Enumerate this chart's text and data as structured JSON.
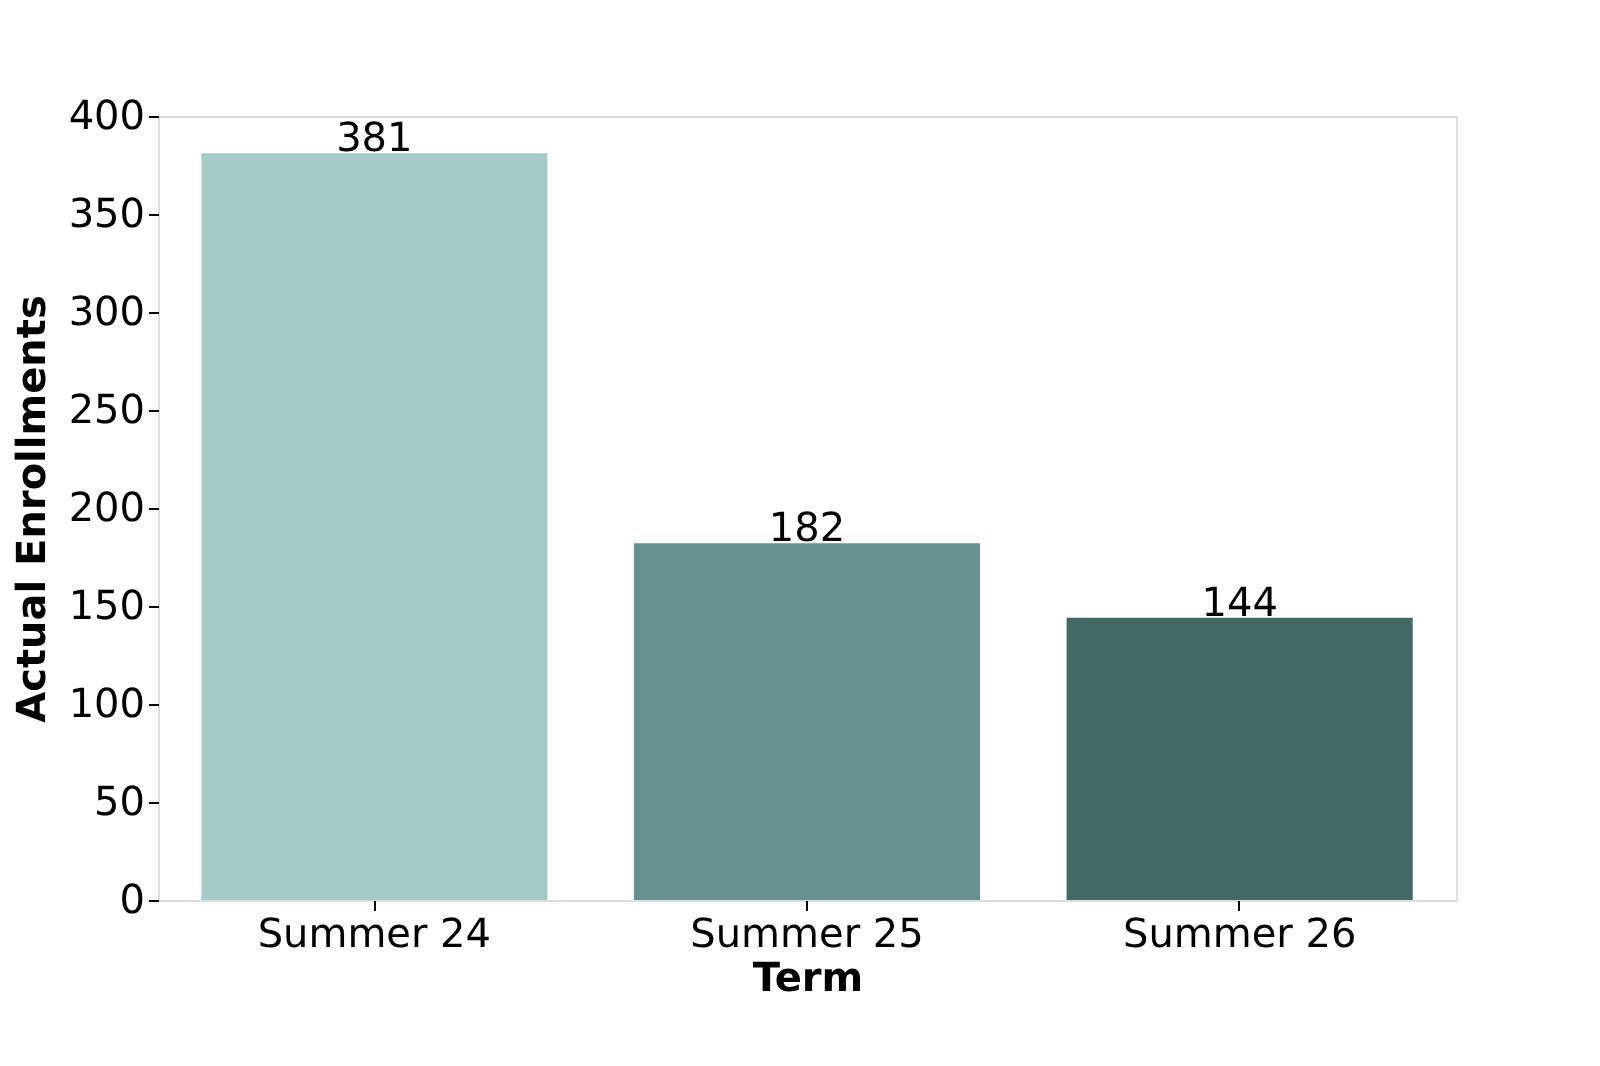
{
  "chart_data": {
    "type": "bar",
    "xlabel": "Term",
    "ylabel": "Actual Enrollments",
    "categories": [
      "Summer 24",
      "Summer 25",
      "Summer 26"
    ],
    "values": [
      381,
      182,
      144
    ],
    "colors": [
      "#a5cbc8",
      "#659290",
      "#426966"
    ],
    "ylim": [
      0,
      400
    ],
    "yticks": [
      0,
      50,
      100,
      150,
      200,
      250,
      300,
      350,
      400
    ],
    "data_labels": true,
    "grid": false
  }
}
